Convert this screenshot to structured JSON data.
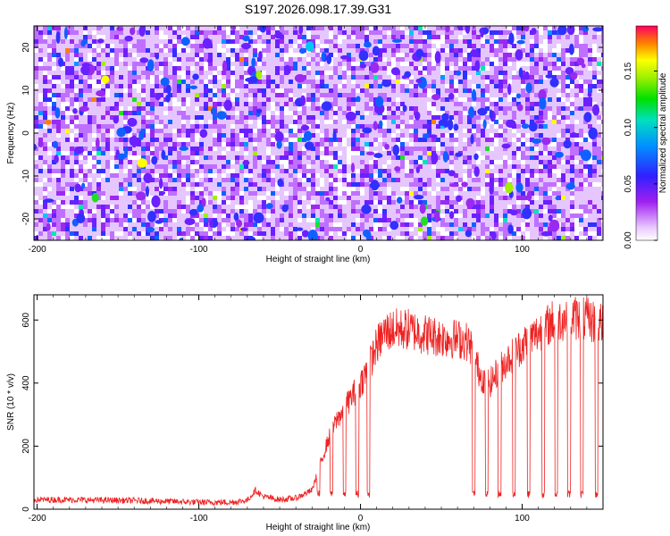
{
  "title": "S197.2026.098.17.39.G31",
  "chart_data": [
    {
      "type": "heatmap",
      "xlabel": "Height of straight line (km)",
      "ylabel": "Frequency (Hz)",
      "xlim": [
        -202,
        150
      ],
      "ylim": [
        -25,
        25
      ],
      "xticks": [
        -200,
        -100,
        0,
        100
      ],
      "xtick_labels": [
        "-200",
        "-100",
        "0",
        "100"
      ],
      "yticks": [
        -20,
        -10,
        0,
        10,
        20
      ],
      "ytick_labels": [
        "-20",
        "-10",
        "0",
        "10",
        "20"
      ],
      "colorbar": {
        "label": "Normalized spectral amplitude",
        "range": [
          0.0,
          0.19
        ],
        "ticks": [
          0.0,
          0.05,
          0.1,
          0.15
        ],
        "tick_labels": [
          "0.00",
          "0.05",
          "0.10",
          "0.15"
        ]
      },
      "description_values": {
        "background_amplitude": 0.02,
        "typical_peak_amplitude": 0.08,
        "max_peak_amplitude": 0.19
      }
    },
    {
      "type": "line",
      "xlabel": "Height of straight line (km)",
      "ylabel": "SNR (10 * v/v)",
      "xlim": [
        -202,
        150
      ],
      "ylim": [
        0,
        680
      ],
      "xticks": [
        -200,
        -100,
        0,
        100
      ],
      "xtick_labels": [
        "-200",
        "-100",
        "0",
        "100"
      ],
      "yticks": [
        0,
        200,
        400,
        600
      ],
      "ytick_labels": [
        "0",
        "200",
        "400",
        "600"
      ],
      "series": [
        {
          "name": "SNR",
          "color": "#ee2222",
          "envelope": {
            "x": [
              -202,
              -180,
              -150,
              -120,
              -100,
              -80,
              -70,
              -65,
              -60,
              -50,
              -40,
              -30,
              -25,
              -20,
              -15,
              -10,
              -5,
              0,
              5,
              10,
              15,
              20,
              30,
              40,
              50,
              60,
              65,
              68,
              70,
              75,
              80,
              90,
              100,
              110,
              120,
              130,
              140,
              148
            ],
            "y": [
              30,
              30,
              28,
              25,
              22,
              22,
              28,
              60,
              40,
              30,
              35,
              60,
              140,
              220,
              280,
              320,
              360,
              400,
              450,
              520,
              560,
              570,
              570,
              555,
              545,
              540,
              535,
              520,
              480,
              420,
              400,
              470,
              520,
              560,
              600,
              610,
              600,
              590
            ]
          },
          "dropouts_x": [
            -26,
            -18,
            -10,
            -2,
            5,
            70,
            78,
            86,
            95,
            104,
            113,
            121,
            129,
            137,
            146
          ],
          "dropout_level": 35
        }
      ]
    }
  ]
}
